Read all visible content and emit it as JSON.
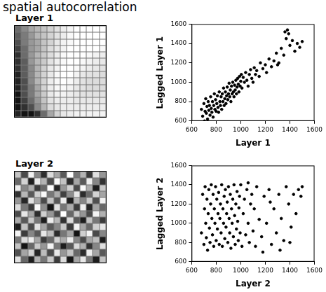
{
  "title": "spatial autocorrelation",
  "chart_data": [
    {
      "type": "heatmap",
      "title": "Layer 1",
      "tick_labels": false,
      "cells": [
        [
          1200,
          1100,
          1000,
          950,
          900,
          850,
          800,
          760,
          730,
          700,
          700,
          700,
          700,
          700
        ],
        [
          1250,
          1150,
          1050,
          950,
          900,
          850,
          800,
          760,
          720,
          700,
          700,
          700,
          700,
          700
        ],
        [
          1300,
          1150,
          1050,
          1000,
          900,
          850,
          780,
          740,
          720,
          700,
          700,
          700,
          700,
          700
        ],
        [
          1350,
          1200,
          1050,
          1000,
          900,
          820,
          780,
          740,
          700,
          700,
          700,
          700,
          700,
          720
        ],
        [
          1400,
          1200,
          1050,
          950,
          880,
          820,
          760,
          720,
          700,
          700,
          700,
          720,
          740,
          760
        ],
        [
          1400,
          1250,
          1050,
          950,
          880,
          800,
          750,
          720,
          700,
          700,
          720,
          740,
          760,
          780
        ],
        [
          1400,
          1250,
          1100,
          950,
          850,
          780,
          740,
          700,
          700,
          720,
          740,
          760,
          780,
          800
        ],
        [
          1450,
          1250,
          1100,
          950,
          850,
          780,
          720,
          700,
          700,
          740,
          780,
          800,
          800,
          820
        ],
        [
          1450,
          1300,
          1100,
          950,
          850,
          760,
          720,
          700,
          720,
          760,
          800,
          820,
          820,
          820
        ],
        [
          1450,
          1300,
          1150,
          1000,
          850,
          760,
          720,
          720,
          740,
          780,
          800,
          820,
          820,
          820
        ],
        [
          1500,
          1300,
          1150,
          1000,
          880,
          780,
          740,
          740,
          760,
          780,
          800,
          800,
          800,
          800
        ],
        [
          1500,
          1350,
          1200,
          1050,
          900,
          800,
          760,
          760,
          760,
          780,
          780,
          780,
          780,
          780
        ],
        [
          1500,
          1400,
          1300,
          1100,
          950,
          820,
          780,
          760,
          760,
          760,
          760,
          760,
          760,
          760
        ],
        [
          1450,
          1500,
          1500,
          1400,
          1200,
          1000,
          850,
          780,
          760,
          740,
          740,
          740,
          740,
          740
        ]
      ]
    },
    {
      "type": "scatter",
      "xlabel": "Layer 1",
      "ylabel": "Lagged Layer 1",
      "xlim": [
        600,
        1600
      ],
      "ylim": [
        600,
        1600
      ],
      "xticks": [
        600,
        800,
        1000,
        1200,
        1400,
        1600
      ],
      "yticks": [
        600,
        800,
        1000,
        1200,
        1400,
        1600
      ],
      "grid": false,
      "color": "#000000",
      "marker": "circle",
      "x": [
        680,
        690,
        700,
        705,
        710,
        715,
        720,
        725,
        730,
        735,
        740,
        745,
        750,
        755,
        760,
        765,
        770,
        775,
        780,
        785,
        790,
        795,
        800,
        805,
        810,
        815,
        820,
        825,
        830,
        835,
        840,
        845,
        850,
        855,
        860,
        865,
        870,
        875,
        880,
        885,
        890,
        895,
        900,
        905,
        910,
        915,
        920,
        925,
        930,
        935,
        940,
        945,
        950,
        955,
        960,
        965,
        970,
        975,
        980,
        985,
        990,
        995,
        1000,
        1005,
        1010,
        1020,
        1030,
        1040,
        1050,
        1060,
        1070,
        1080,
        1090,
        1100,
        1110,
        1120,
        1130,
        1150,
        1160,
        1180,
        1200,
        1210,
        1230,
        1250,
        1270,
        1290,
        1310,
        1330,
        1350,
        1370,
        1380,
        1390,
        1400,
        1420,
        1440,
        1460,
        1480,
        1500,
        1360,
        1300
      ],
      "values": [
        720,
        650,
        780,
        600,
        700,
        830,
        680,
        750,
        620,
        800,
        710,
        760,
        660,
        850,
        730,
        690,
        800,
        640,
        760,
        880,
        720,
        820,
        700,
        780,
        860,
        740,
        690,
        900,
        800,
        760,
        850,
        720,
        880,
        800,
        940,
        760,
        830,
        900,
        780,
        860,
        950,
        820,
        880,
        990,
        850,
        920,
        800,
        960,
        880,
        1000,
        900,
        850,
        970,
        920,
        1020,
        880,
        950,
        1040,
        980,
        900,
        1060,
        960,
        1010,
        1080,
        940,
        1050,
        1000,
        1100,
        1020,
        960,
        1080,
        1130,
        1040,
        1000,
        1150,
        1080,
        1120,
        1060,
        1200,
        1140,
        1180,
        1100,
        1240,
        1160,
        1220,
        1300,
        1200,
        1350,
        1280,
        1450,
        1540,
        1500,
        1380,
        1430,
        1320,
        1400,
        1360,
        1420,
        1520,
        1180
      ]
    },
    {
      "type": "heatmap",
      "title": "Layer 2",
      "tick_labels": false,
      "cells": [
        [
          900,
          1300,
          750,
          1100,
          1400,
          820,
          1000,
          1250,
          700,
          1150,
          950,
          1350,
          800,
          1050
        ],
        [
          1200,
          850,
          1450,
          780,
          950,
          1300,
          720,
          900,
          1400,
          1000,
          1250,
          760,
          1100,
          1380
        ],
        [
          760,
          1100,
          980,
          1350,
          1200,
          700,
          1420,
          1050,
          850,
          1300,
          720,
          980,
          1450,
          880
        ],
        [
          1380,
          940,
          1250,
          860,
          720,
          1150,
          980,
          1330,
          1080,
          780,
          1400,
          1200,
          850,
          1000
        ],
        [
          1050,
          1420,
          800,
          1000,
          1300,
          900,
          1250,
          760,
          1450,
          950,
          1100,
          880,
          1280,
          740
        ],
        [
          820,
          1150,
          1350,
          720,
          1080,
          1480,
          800,
          1150,
          980,
          1350,
          760,
          1420,
          1000,
          1200
        ],
        [
          1300,
          780,
          1000,
          1400,
          860,
          1050,
          1300,
          700,
          1200,
          880,
          1050,
          1300,
          740,
          960
        ],
        [
          980,
          1250,
          880,
          1150,
          1450,
          760,
          940,
          1380,
          820,
          1250,
          1450,
          900,
          1150,
          1350
        ],
        [
          1450,
          900,
          1300,
          800,
          1000,
          1250,
          1100,
          880,
          1350,
          740,
          1000,
          1200,
          860,
          780
        ],
        [
          740,
          1350,
          1100,
          1250,
          780,
          920,
          1400,
          1150,
          1000,
          1480,
          860,
          740,
          1300,
          1100
        ],
        [
          1150,
          820,
          760,
          1000,
          1350,
          1200,
          850,
          980,
          760,
          1100,
          1300,
          1000,
          920,
          1450
        ],
        [
          900,
          1480,
          1200,
          880,
          1050,
          740,
          1150,
          1450,
          1250,
          820,
          960,
          1380,
          1100,
          800
        ],
        [
          1280,
          1000,
          850,
          1420,
          920,
          1300,
          780,
          1050,
          900,
          1200,
          1400,
          760,
          1000,
          1250
        ],
        [
          800,
          1200,
          1450,
          960,
          1150,
          880,
          1350,
          820,
          1480,
          1000,
          780,
          1150,
          1450,
          900
        ]
      ]
    },
    {
      "type": "scatter",
      "xlabel": "Layer 2",
      "ylabel": "Lagged Layer 2",
      "xlim": [
        600,
        1600
      ],
      "ylim": [
        600,
        1600
      ],
      "xticks": [
        600,
        800,
        1000,
        1200,
        1400,
        1600
      ],
      "yticks": [
        600,
        800,
        1000,
        1200,
        1400,
        1600
      ],
      "grid": false,
      "color": "#000000",
      "marker": "circle",
      "x": [
        680,
        690,
        700,
        705,
        710,
        715,
        720,
        725,
        730,
        735,
        740,
        745,
        750,
        755,
        760,
        765,
        770,
        775,
        780,
        785,
        790,
        795,
        800,
        805,
        810,
        815,
        820,
        825,
        830,
        835,
        840,
        845,
        850,
        855,
        860,
        865,
        870,
        875,
        880,
        885,
        890,
        895,
        900,
        905,
        910,
        915,
        920,
        925,
        930,
        935,
        940,
        945,
        950,
        955,
        960,
        965,
        970,
        975,
        980,
        985,
        990,
        995,
        1000,
        1010,
        1020,
        1030,
        1040,
        1050,
        1060,
        1070,
        1080,
        1090,
        1100,
        1110,
        1120,
        1130,
        1150,
        1170,
        1190,
        1210,
        1230,
        1250,
        1270,
        1290,
        1310,
        1330,
        1350,
        1370,
        1390,
        1410,
        1430,
        1450,
        1470,
        1490,
        1500,
        1400,
        1320,
        1240,
        1180,
        1060
      ],
      "values": [
        900,
        1300,
        780,
        1150,
        1380,
        1000,
        850,
        1250,
        720,
        1100,
        1350,
        950,
        800,
        1200,
        1400,
        1050,
        880,
        1300,
        760,
        1150,
        1000,
        1380,
        820,
        1250,
        940,
        1100,
        1320,
        780,
        1050,
        1200,
        900,
        1400,
        760,
        1150,
        1000,
        1280,
        840,
        1350,
        960,
        1100,
        1220,
        800,
        1380,
        1050,
        900,
        1300,
        740,
        1150,
        1000,
        1250,
        860,
        1400,
        1080,
        780,
        1200,
        940,
        1330,
        1020,
        820,
        1160,
        1280,
        900,
        1400,
        760,
        1100,
        1250,
        880,
        1350,
        1000,
        800,
        1200,
        1300,
        920,
        1150,
        760,
        1380,
        1040,
        860,
        1280,
        1000,
        1350,
        780,
        1150,
        900,
        1300,
        1050,
        820,
        1380,
        1200,
        960,
        1300,
        1100,
        1350,
        1280,
        1380,
        800,
        720,
        1220,
        700,
        1420
      ]
    }
  ]
}
